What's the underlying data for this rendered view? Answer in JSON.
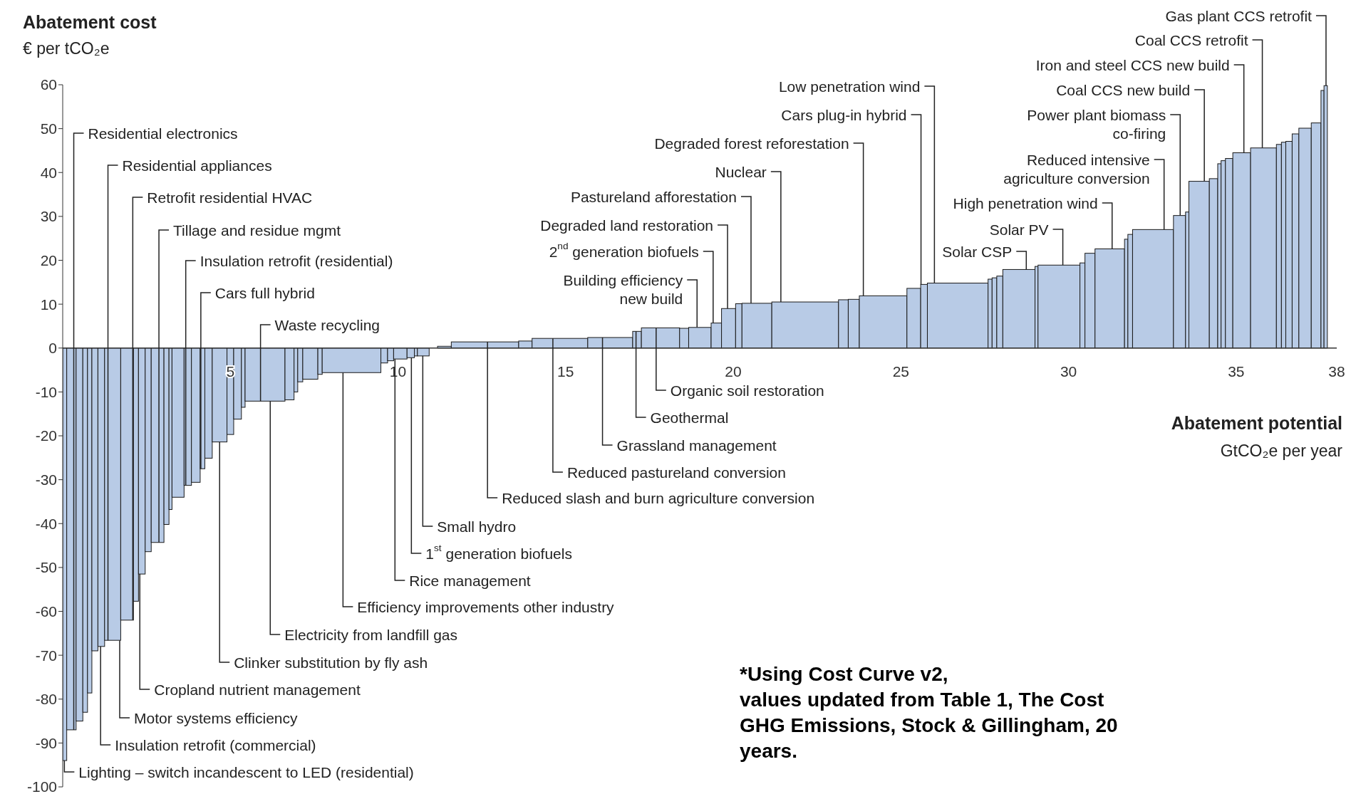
{
  "chart_data": {
    "type": "histogram",
    "ylabel": "Abatement cost\n€ per tCO₂e",
    "xlabel": "Abatement potential\nGtCO₂e per year",
    "color": "#b8cbe6",
    "bins": [
      0,
      0.12,
      0.4,
      0.6,
      0.74,
      0.87,
      1.05,
      1.25,
      1.73,
      2.11,
      2.26,
      2.46,
      2.64,
      3.02,
      3.17,
      3.26,
      3.62,
      3.84,
      4.1,
      4.24,
      4.46,
      4.9,
      5.1,
      5.33,
      5.44,
      6.63,
      6.9,
      7.01,
      7.16,
      7.61,
      7.74,
      9.49,
      9.69,
      9.87,
      10.27,
      10.49,
      10.58,
      10.93,
      11.18,
      11.59,
      13.6,
      14.0,
      15.66,
      17.0,
      17.26,
      18.4,
      18.67,
      19.34,
      19.65,
      20.07,
      20.26,
      21.15,
      23.14,
      23.43,
      23.76,
      25.18,
      25.59,
      25.79,
      27.6,
      27.72,
      27.86,
      28.04,
      29.0,
      29.09,
      30.34,
      30.49,
      30.79,
      31.67,
      31.77,
      31.91,
      33.13,
      33.49,
      33.59,
      34.2,
      34.45,
      34.55,
      34.68,
      34.9,
      35.43,
      36.2,
      36.35,
      36.48,
      36.67,
      36.87,
      37.24,
      37.53,
      37.62,
      37.72
    ],
    "values": [
      -94,
      -87,
      -85,
      -83,
      -78.6,
      -69,
      -68,
      -66.6,
      -62,
      -57.7,
      -51.5,
      -46.4,
      -44.3,
      -40.2,
      -36.8,
      -34,
      -31.3,
      -30.6,
      -27.5,
      -25.1,
      -21.4,
      -19.7,
      -16.2,
      -13.5,
      -12.1,
      -11.8,
      -10,
      -7.7,
      -7.1,
      -6,
      -5.6,
      -3.4,
      -2.9,
      -2.5,
      -2.2,
      -1.8,
      -1.8,
      null,
      0.4,
      1.4,
      1.6,
      2.2,
      2.4,
      3.8,
      4.6,
      4.5,
      4.7,
      5.7,
      9.0,
      10.1,
      10.2,
      10.5,
      11.0,
      11.1,
      11.9,
      13.6,
      14.5,
      14.8,
      15.7,
      16.0,
      16.4,
      17.9,
      18.6,
      18.9,
      19.4,
      21.6,
      22.6,
      24.8,
      25.9,
      27.0,
      30.2,
      31.0,
      38.0,
      38.6,
      42.0,
      42.7,
      43.2,
      44.5,
      45.6,
      46.4,
      46.9,
      47.1,
      48.8,
      50.1,
      51.3,
      58.7,
      59.8
    ],
    "xlim": [
      0,
      38
    ],
    "xticks": [
      5,
      10,
      15,
      20,
      25,
      30,
      35,
      38
    ],
    "ylim": [
      -100,
      60
    ],
    "yticks": [
      -100,
      -90,
      -80,
      -70,
      -60,
      -50,
      -40,
      -30,
      -20,
      -10,
      0,
      10,
      20,
      30,
      40,
      50,
      60
    ],
    "annotations": [
      {
        "text": "Residential electronics",
        "x": 0.33,
        "y": -87
      },
      {
        "text": "Residential appliances",
        "x": 1.35,
        "y": -66.6
      },
      {
        "text": "Retrofit residential HVAC",
        "x": 2.09,
        "y": -62
      },
      {
        "text": "Tillage and residue mgmt",
        "x": 2.87,
        "y": -44.3
      },
      {
        "text": "Insulation retrofit (residential)",
        "x": 3.67,
        "y": -31.3
      },
      {
        "text": "Cars full hybrid",
        "x": 4.12,
        "y": -27.5
      },
      {
        "text": "Waste recycling",
        "x": 5.9,
        "y": -12.1
      },
      {
        "text": "Lighting – switch incandescent to LED (residential)",
        "x": 0.05,
        "y": -94
      },
      {
        "text": "Insulation retrofit (commercial)",
        "x": 1.13,
        "y": -68
      },
      {
        "text": "Motor systems efficiency",
        "x": 1.7,
        "y": -66.6
      },
      {
        "text": "Cropland nutrient management",
        "x": 2.3,
        "y": -51.5
      },
      {
        "text": "Clinker substitution by fly ash",
        "x": 4.68,
        "y": -21.4
      },
      {
        "text": "Electricity from landfill gas",
        "x": 6.19,
        "y": -12.1
      },
      {
        "text": "Efficiency improvements other industry",
        "x": 8.36,
        "y": -5.6
      },
      {
        "text": "Rice management",
        "x": 9.91,
        "y": -2.5
      },
      {
        "text": "1$^{st}$ generation biofuels",
        "x": 10.4,
        "y": -2.2
      },
      {
        "text": "Small hydro",
        "x": 10.74,
        "y": -1.8
      },
      {
        "text": "Reduced slash and burn agriculture conversion",
        "x": 12.67,
        "y": 1.4
      },
      {
        "text": "Reduced pastureland conversion",
        "x": 14.62,
        "y": 2.2
      },
      {
        "text": "Grassland management",
        "x": 16.1,
        "y": 2.4
      },
      {
        "text": "Geothermal",
        "x": 17.1,
        "y": 3.8
      },
      {
        "text": "Organic soil restoration",
        "x": 17.7,
        "y": 4.6
      },
      {
        "text": "Building efficiency\nnew build",
        "x": 18.92,
        "y": 4.7
      },
      {
        "text": "2$^{nd}$ generation biofuels",
        "x": 19.4,
        "y": 5.7
      },
      {
        "text": "Degraded land restoration",
        "x": 19.83,
        "y": 9.0
      },
      {
        "text": "Pastureland afforestation",
        "x": 20.53,
        "y": 10.2
      },
      {
        "text": "Nuclear",
        "x": 21.42,
        "y": 10.5
      },
      {
        "text": "Degraded forest reforestation",
        "x": 23.88,
        "y": 11.9
      },
      {
        "text": "Cars plug-in hybrid",
        "x": 25.6,
        "y": 14.5
      },
      {
        "text": "Low penetration wind",
        "x": 26.0,
        "y": 14.8
      },
      {
        "text": "Gas plant CCS retrofit",
        "x": 37.68,
        "y": 59.8
      },
      {
        "text": "Coal CCS retrofit",
        "x": 35.78,
        "y": 45.6
      },
      {
        "text": "Iron and steel CCS new build",
        "x": 35.23,
        "y": 44.5
      },
      {
        "text": "Coal CCS new build",
        "x": 34.05,
        "y": 38.0
      },
      {
        "text": "Power plant biomass\nco-firing",
        "x": 33.33,
        "y": 30.2
      },
      {
        "text": "Reduced intensive\nagriculture conversion",
        "x": 32.85,
        "y": 27.0
      },
      {
        "text": "High penetration wind",
        "x": 31.3,
        "y": 22.6
      },
      {
        "text": "Solar PV",
        "x": 29.83,
        "y": 18.9
      },
      {
        "text": "Solar CSP",
        "x": 28.74,
        "y": 17.9
      },
      "*Using  Cost Curve v2,\nvalues updated from Table 1, The Cost\nGHG Emissions, Stock & Gillingham, 20\nyears."
    ]
  }
}
